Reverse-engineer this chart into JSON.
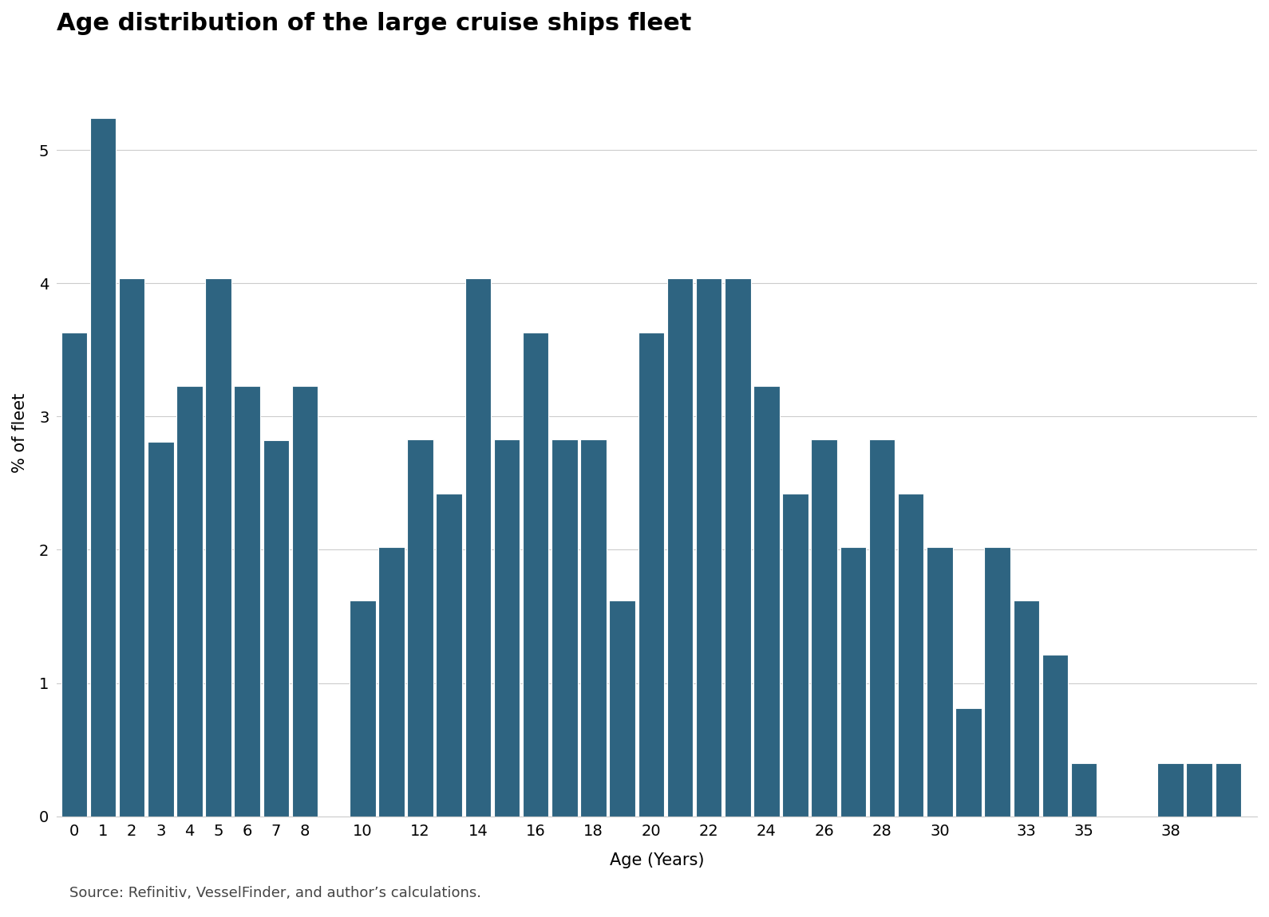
{
  "title": "Age distribution of the large cruise ships fleet",
  "xlabel": "Age (Years)",
  "ylabel": "% of fleet",
  "source": "Source: Refinitiv, VesselFinder, and author’s calculations.",
  "bar_color": "#2e6481",
  "background_color": "#ffffff",
  "ages": [
    0,
    1,
    2,
    3,
    4,
    5,
    6,
    7,
    8,
    10,
    11,
    12,
    13,
    14,
    15,
    16,
    17,
    18,
    19,
    20,
    21,
    22,
    23,
    24,
    25,
    26,
    27,
    28,
    29,
    30,
    31,
    32,
    33,
    34,
    35,
    38,
    39,
    40
  ],
  "values": [
    3.63,
    5.24,
    4.04,
    2.81,
    3.23,
    4.04,
    3.23,
    2.82,
    3.23,
    1.62,
    2.02,
    2.83,
    2.42,
    4.04,
    2.83,
    3.63,
    2.83,
    2.83,
    1.62,
    3.63,
    4.04,
    4.04,
    4.04,
    3.23,
    2.42,
    2.83,
    2.02,
    2.83,
    2.42,
    2.02,
    0.81,
    2.02,
    1.62,
    1.21,
    0.4,
    0.4,
    0.4,
    0.4
  ],
  "ytick_values": [
    0,
    1,
    2,
    3,
    4,
    5
  ],
  "ylim": [
    0,
    5.75
  ],
  "xlim": [
    -0.6,
    41.0
  ],
  "bar_width": 0.9,
  "title_fontsize": 22,
  "axis_label_fontsize": 15,
  "tick_fontsize": 14,
  "source_fontsize": 13,
  "shown_xticks": [
    0,
    1,
    2,
    3,
    4,
    5,
    6,
    7,
    8,
    10,
    12,
    14,
    16,
    18,
    20,
    22,
    24,
    26,
    28,
    30,
    33,
    35,
    38
  ],
  "grid_color": "#cccccc",
  "spine_color": "#cccccc"
}
